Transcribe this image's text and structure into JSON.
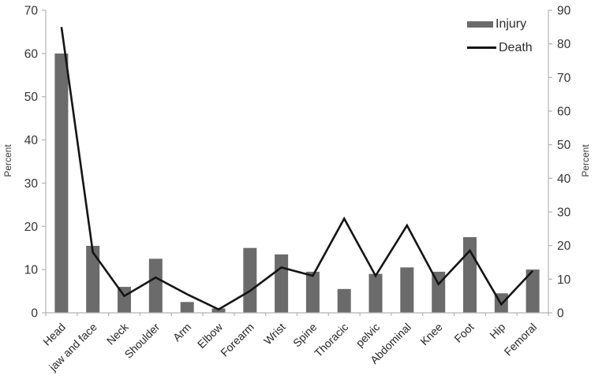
{
  "chart_data": {
    "type": "combo-bar-line",
    "categories": [
      "Head",
      "jaw and face",
      "Neck",
      "Shoulder",
      "Arm",
      "Elbow",
      "Forearm",
      "Wrist",
      "Spine",
      "Thoracic",
      "pelvic",
      "Abdominal",
      "Knee",
      "Foot",
      "Hip",
      "Femoral"
    ],
    "series": [
      {
        "name": "Injury",
        "type": "bar",
        "axis": "left",
        "color": "#6b6b6b",
        "values": [
          60,
          15.5,
          6,
          12.5,
          2.5,
          1,
          15,
          13.5,
          9.5,
          5.5,
          9,
          10.5,
          9.5,
          17.5,
          4.5,
          10
        ]
      },
      {
        "name": "Death",
        "type": "line",
        "axis": "right",
        "color": "#141414",
        "values": [
          85,
          18,
          5,
          10.5,
          5.5,
          1,
          6.5,
          13.5,
          11,
          28,
          11,
          26,
          8.5,
          18.5,
          2.5,
          12.5
        ]
      }
    ],
    "left_axis": {
      "label": "Percent",
      "min": 0,
      "max": 70,
      "tick_step": 10,
      "ticks": [
        0,
        10,
        20,
        30,
        40,
        50,
        60,
        70
      ]
    },
    "right_axis": {
      "label": "Percent",
      "min": 0,
      "max": 90,
      "tick_step": 10,
      "ticks": [
        0,
        10,
        20,
        30,
        40,
        50,
        60,
        70,
        80,
        90
      ]
    },
    "legend": {
      "position": "top-right",
      "entries": [
        "Injury",
        "Death"
      ]
    },
    "grid": false,
    "colors": {
      "bar": "#6b6b6b",
      "line": "#141414",
      "axis_line": "#b3b3b3",
      "tick_text": "#333333",
      "category_text": "#262626"
    }
  }
}
